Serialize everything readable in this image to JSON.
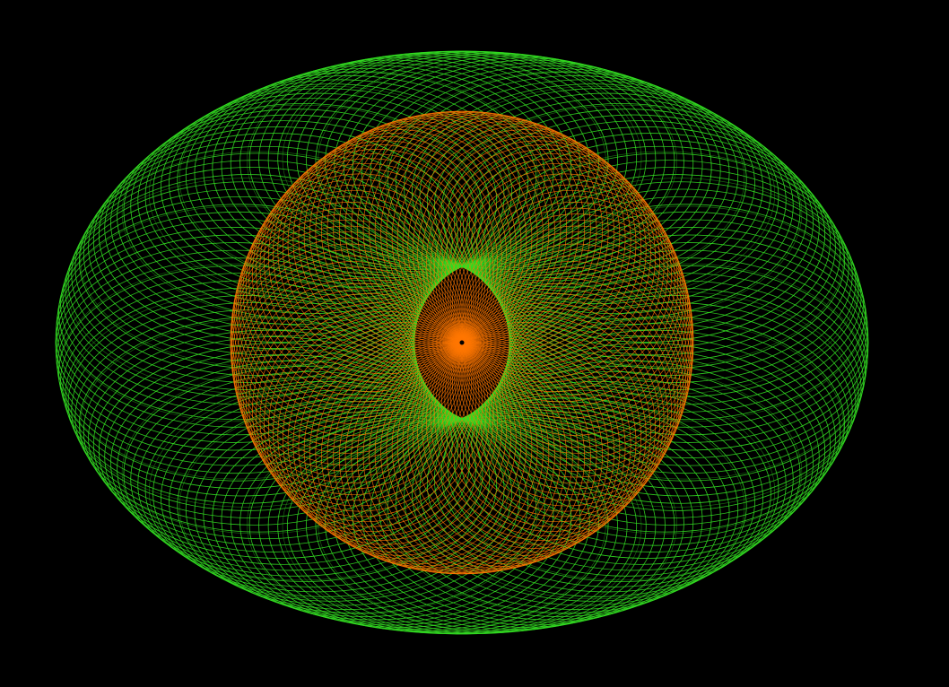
{
  "canvas": {
    "background_color": "#000000"
  },
  "figure": {
    "description_kind": "spirograph",
    "outer_pattern": {
      "color": "#33dd22",
      "kind": "green ellipse-orbit mesh"
    },
    "inner_pattern": {
      "color": "#ff7700",
      "kind": "orange ellipse-orbit mesh"
    },
    "center_dot": {
      "color": "#000000"
    }
  }
}
